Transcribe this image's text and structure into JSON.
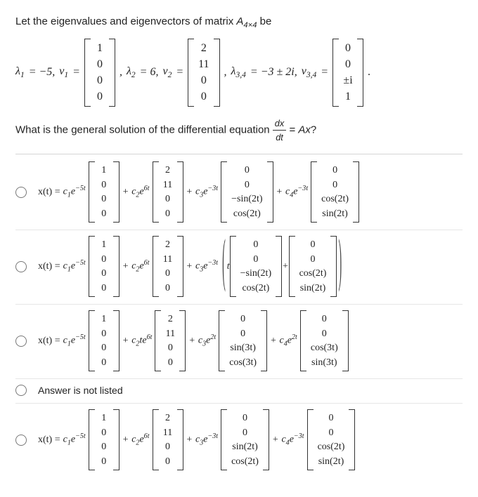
{
  "prompt_prefix": "Let the eigenvalues and eigenvectors of matrix ",
  "matrix_symbol": "A",
  "matrix_sub": "4×4",
  "prompt_suffix": " be",
  "eigs": {
    "l1_label": "λ",
    "l1_sub": "1",
    "l1_val": " = −5, ",
    "v1_label": "v",
    "v1_sub": "1",
    "eq": " = ",
    "v1": [
      "1",
      "0",
      "0",
      "0"
    ],
    "l2_label": "λ",
    "l2_sub": "2",
    "l2_val": " = 6, ",
    "v2_label": "v",
    "v2_sub": "2",
    "v2": [
      "2",
      "11",
      "0",
      "0"
    ],
    "l34_label": "λ",
    "l34_sub": "3,4",
    "l34_val": " = −3 ± 2i, ",
    "v34_label": "v",
    "v34_sub": "3,4",
    "v34": [
      "0",
      "0",
      "±i",
      "1"
    ],
    "period": "."
  },
  "question_prefix": "What is the general solution of the differential equation ",
  "frac_num": "dx",
  "frac_den": "dt",
  "question_mid": " = ",
  "question_rhs": "Ax",
  "question_suffix": "?",
  "xt": "x(t) = ",
  "c1": "c",
  "c1s": "1",
  "e": "e",
  "m5t": "−5t",
  "c2": "c",
  "c2s": "2",
  "six_t": "6t",
  "c2te": "te",
  "c3": "c",
  "c3s": "3",
  "m3t": "−3t",
  "p2t": "2t",
  "c4": "c",
  "c4s": "4",
  "plus": " + ",
  "comma": " , ",
  "t": "t",
  "vec_v1": [
    "1",
    "0",
    "0",
    "0"
  ],
  "vec_v2": [
    "2",
    "11",
    "0",
    "0"
  ],
  "optA": {
    "v3": [
      "0",
      "0",
      "−sin(2t)",
      "cos(2t)"
    ],
    "v4": [
      "0",
      "0",
      "cos(2t)",
      "sin(2t)"
    ]
  },
  "optB": {
    "v3": [
      "0",
      "0",
      "−sin(2t)",
      "cos(2t)"
    ],
    "v4": [
      "0",
      "0",
      "cos(2t)",
      "sin(2t)"
    ]
  },
  "optC": {
    "v3": [
      "0",
      "0",
      "sin(3t)",
      "cos(3t)"
    ],
    "v4": [
      "0",
      "0",
      "cos(3t)",
      "sin(3t)"
    ]
  },
  "optD_text": "Answer is not listed",
  "optE": {
    "v3": [
      "0",
      "0",
      "sin(2t)",
      "cos(2t)"
    ],
    "v4": [
      "0",
      "0",
      "cos(2t)",
      "sin(2t)"
    ]
  },
  "styling": {
    "font_family": "Times New Roman",
    "body_fontsize": 16,
    "option_fontsize": 14,
    "sep_color": "#e6e6e6",
    "bracket_color": "#333333",
    "text_color": "#222222",
    "radio_border": "#777777",
    "vec_row_gap": 3,
    "vec_padding": "4px 6px",
    "bracket_width": 8
  }
}
